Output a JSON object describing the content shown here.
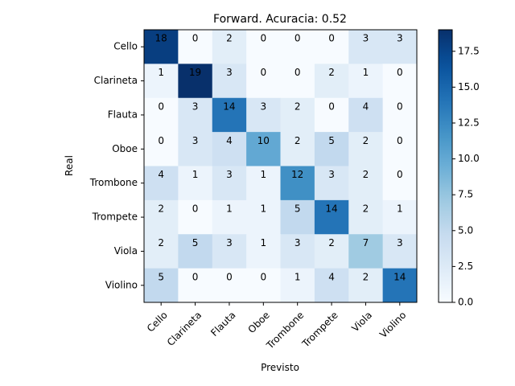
{
  "chart_data": {
    "type": "heatmap",
    "title": "Forward. Acuracia: 0.52",
    "xlabel": "Previsto",
    "ylabel": "Real",
    "x_categories": [
      "Cello",
      "Clarineta",
      "Flauta",
      "Oboe",
      "Trombone",
      "Trompete",
      "Viola",
      "Violino"
    ],
    "y_categories": [
      "Cello",
      "Clarineta",
      "Flauta",
      "Oboe",
      "Trombone",
      "Trompete",
      "Viola",
      "Violino"
    ],
    "values": [
      [
        18,
        0,
        2,
        0,
        0,
        0,
        3,
        3
      ],
      [
        1,
        19,
        3,
        0,
        0,
        2,
        1,
        0
      ],
      [
        0,
        3,
        14,
        3,
        2,
        0,
        4,
        0
      ],
      [
        0,
        3,
        4,
        10,
        2,
        5,
        2,
        0
      ],
      [
        4,
        1,
        3,
        1,
        12,
        3,
        2,
        0
      ],
      [
        2,
        0,
        1,
        1,
        5,
        14,
        2,
        1
      ],
      [
        2,
        5,
        3,
        1,
        3,
        2,
        7,
        3
      ],
      [
        5,
        0,
        0,
        0,
        1,
        4,
        2,
        14
      ]
    ],
    "colormap": "Blues",
    "vmin": 0,
    "vmax": 19,
    "colorbar_ticks": [
      "0.0",
      "2.5",
      "5.0",
      "7.5",
      "10.0",
      "12.5",
      "15.0",
      "17.5"
    ],
    "colorbar_tick_values": [
      0,
      2.5,
      5,
      7.5,
      10,
      12.5,
      15,
      17.5
    ],
    "grid": false
  }
}
